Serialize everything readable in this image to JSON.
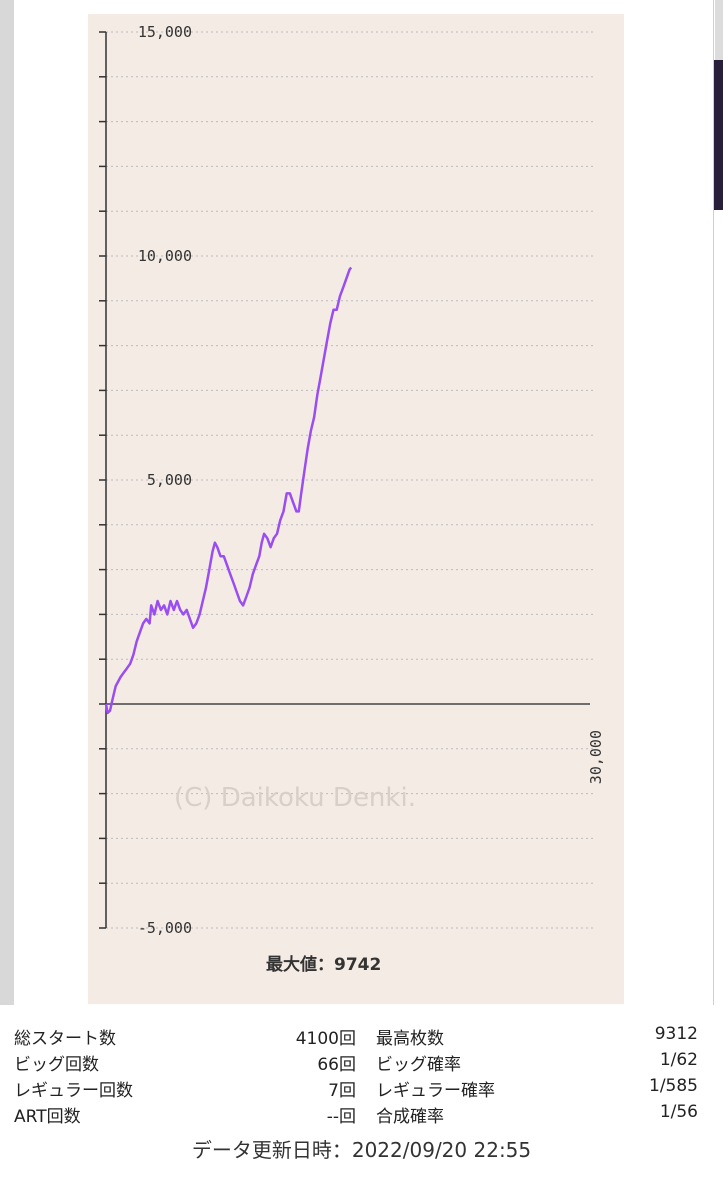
{
  "chart_data": {
    "type": "line",
    "y_ticks": [
      {
        "value": 15000,
        "label": "15,000"
      },
      {
        "value": 10000,
        "label": "10,000"
      },
      {
        "value": 5000,
        "label": "5,000"
      },
      {
        "value": -5000,
        "label": "-5,000"
      }
    ],
    "x_tick": {
      "value": 30000,
      "label": "30,000"
    },
    "ylim": [
      -5000,
      15000
    ],
    "xlim": [
      0,
      30000
    ],
    "grid": true,
    "line_color": "#9a4df2",
    "watermark": "(C) Daikoku Denki.",
    "max_label": "最大値：9742",
    "series": [
      {
        "points": [
          [
            0,
            0
          ],
          [
            100,
            -200
          ],
          [
            250,
            -150
          ],
          [
            400,
            100
          ],
          [
            600,
            400
          ],
          [
            900,
            600
          ],
          [
            1100,
            700
          ],
          [
            1300,
            800
          ],
          [
            1500,
            900
          ],
          [
            1700,
            1100
          ],
          [
            1900,
            1400
          ],
          [
            2100,
            1600
          ],
          [
            2300,
            1800
          ],
          [
            2500,
            1900
          ],
          [
            2700,
            1800
          ],
          [
            2800,
            2200
          ],
          [
            3000,
            2000
          ],
          [
            3200,
            2300
          ],
          [
            3400,
            2100
          ],
          [
            3600,
            2200
          ],
          [
            3800,
            2000
          ],
          [
            4000,
            2300
          ],
          [
            4200,
            2100
          ],
          [
            4400,
            2300
          ],
          [
            4600,
            2100
          ],
          [
            4800,
            2000
          ],
          [
            5000,
            2100
          ],
          [
            5200,
            1900
          ],
          [
            5400,
            1700
          ],
          [
            5600,
            1800
          ],
          [
            5800,
            2000
          ],
          [
            6000,
            2300
          ],
          [
            6200,
            2600
          ],
          [
            6400,
            3000
          ],
          [
            6600,
            3400
          ],
          [
            6750,
            3600
          ],
          [
            6900,
            3500
          ],
          [
            7100,
            3300
          ],
          [
            7300,
            3300
          ],
          [
            7500,
            3100
          ],
          [
            7700,
            2900
          ],
          [
            7900,
            2700
          ],
          [
            8100,
            2500
          ],
          [
            8300,
            2300
          ],
          [
            8500,
            2200
          ],
          [
            8700,
            2400
          ],
          [
            8900,
            2600
          ],
          [
            9100,
            2900
          ],
          [
            9300,
            3100
          ],
          [
            9500,
            3300
          ],
          [
            9650,
            3600
          ],
          [
            9800,
            3800
          ],
          [
            10000,
            3700
          ],
          [
            10200,
            3500
          ],
          [
            10400,
            3700
          ],
          [
            10600,
            3800
          ],
          [
            10800,
            4100
          ],
          [
            11000,
            4300
          ],
          [
            11200,
            4700
          ],
          [
            11400,
            4700
          ],
          [
            11600,
            4500
          ],
          [
            11800,
            4300
          ],
          [
            11950,
            4300
          ],
          [
            12100,
            4700
          ],
          [
            12300,
            5200
          ],
          [
            12500,
            5700
          ],
          [
            12700,
            6100
          ],
          [
            12900,
            6400
          ],
          [
            13100,
            6900
          ],
          [
            13300,
            7300
          ],
          [
            13500,
            7700
          ],
          [
            13700,
            8100
          ],
          [
            13900,
            8500
          ],
          [
            14100,
            8800
          ],
          [
            14300,
            8800
          ],
          [
            14500,
            9100
          ],
          [
            14700,
            9300
          ],
          [
            14900,
            9500
          ],
          [
            15100,
            9700
          ],
          [
            15200,
            9742
          ]
        ]
      }
    ]
  },
  "stats": [
    {
      "label": "総スタート数",
      "value": "4100回",
      "label2": "最高枚数",
      "value2": "9312"
    },
    {
      "label": "ビッグ回数",
      "value": "66回",
      "label2": "ビッグ確率",
      "value2": "1/62"
    },
    {
      "label": "レギュラー回数",
      "value": "7回",
      "label2": "レギュラー確率",
      "value2": "1/585"
    },
    {
      "label": "ART回数",
      "value": "--回",
      "label2": "合成確率",
      "value2": "1/56"
    }
  ],
  "update_time": "データ更新日時：2022/09/20 22:55"
}
